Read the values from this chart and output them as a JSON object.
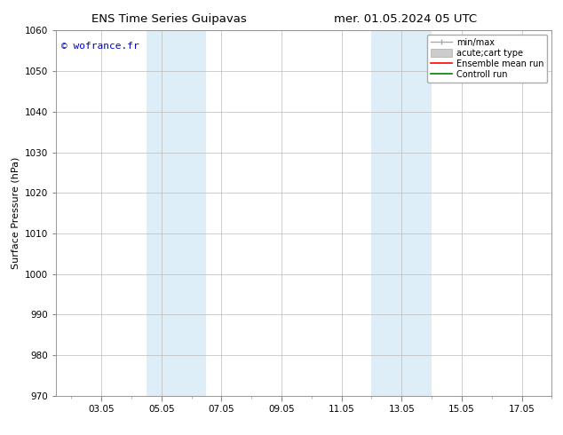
{
  "title_left": "ENS Time Series Guipavas",
  "title_right": "mer. 01.05.2024 05 UTC",
  "ylabel": "Surface Pressure (hPa)",
  "ylim": [
    970,
    1060
  ],
  "yticks": [
    970,
    980,
    990,
    1000,
    1010,
    1020,
    1030,
    1040,
    1050,
    1060
  ],
  "xtick_labels": [
    "03.05",
    "05.05",
    "07.05",
    "09.05",
    "11.05",
    "13.05",
    "15.05",
    "17.05"
  ],
  "xtick_positions": [
    2,
    4,
    6,
    8,
    10,
    12,
    14,
    16
  ],
  "xlim": [
    0.5,
    17.0
  ],
  "shaded_bands": [
    {
      "x_start": 3.5,
      "x_end": 5.5,
      "color": "#ddeef8"
    },
    {
      "x_start": 11.0,
      "x_end": 13.0,
      "color": "#ddeef8"
    }
  ],
  "watermark_text": "© wofrance.fr",
  "watermark_color": "#0000cc",
  "background_color": "#ffffff",
  "plot_bg_color": "#ffffff",
  "grid_color": "#bbbbbb",
  "legend_entries": [
    {
      "label": "min/max",
      "color": "#aaaaaa",
      "lw": 1.0,
      "ls": "-",
      "type": "errorbar"
    },
    {
      "label": "acute;cart type",
      "color": "#cccccc",
      "lw": 6,
      "ls": "-",
      "type": "band"
    },
    {
      "label": "Ensemble mean run",
      "color": "#ff0000",
      "lw": 1.2,
      "ls": "-",
      "type": "line"
    },
    {
      "label": "Controll run",
      "color": "#008000",
      "lw": 1.2,
      "ls": "-",
      "type": "line"
    }
  ],
  "title_fontsize": 9.5,
  "label_fontsize": 8,
  "tick_fontsize": 7.5,
  "legend_fontsize": 7
}
